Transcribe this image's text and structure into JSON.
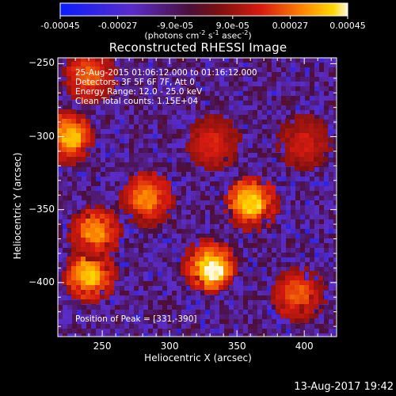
{
  "colorbar": {
    "tick_labels": [
      "-0.00045",
      "-0.00027",
      "-9.0e-05",
      "9.0e-05",
      "0.00027",
      "0.00045"
    ],
    "tick_values": [
      -0.00045,
      -0.00027,
      -9e-05,
      9e-05,
      0.00027,
      0.00045
    ],
    "range": [
      -0.00045,
      0.00045
    ],
    "unit_main": "(photons cm",
    "unit_exp1": "-2",
    "unit_mid1": " s",
    "unit_exp2": "-1",
    "unit_mid2": " asec",
    "unit_exp3": "-2",
    "unit_end": ")"
  },
  "chart_data": {
    "type": "heatmap",
    "title": "Reconstructed RHESSI Image",
    "xlabel": "Heliocentric X (arcsec)",
    "ylabel": "Heliocentric Y (arcsec)",
    "xlim": [
      217,
      424
    ],
    "ylim": [
      -437,
      -246
    ],
    "x_ticks": [
      250,
      300,
      350,
      400
    ],
    "y_ticks": [
      -250,
      -300,
      -350,
      -400
    ],
    "x_tick_labels": [
      "250",
      "300",
      "350",
      "400"
    ],
    "y_tick_labels": [
      "−250",
      "−300",
      "−350",
      "−400"
    ],
    "annotations": [
      "25-Aug-2015 01:06:12.000 to 01:16:12.000",
      "Detectors: 3F 5F 6F 7F, Att 0",
      "Energy Range: 12.0 - 25.0 keV",
      "Clean     Total counts: 1.15E+04"
    ],
    "peak_label": "Position of Peak = [331,-390]",
    "peak_position": [
      331,
      -390
    ],
    "sources": [
      {
        "x": 331,
        "y": -390,
        "value": 0.00045
      },
      {
        "x": 360,
        "y": -345,
        "value": 0.0004
      },
      {
        "x": 240,
        "y": -395,
        "value": 0.00038
      },
      {
        "x": 225,
        "y": -300,
        "value": 0.00036
      },
      {
        "x": 245,
        "y": -365,
        "value": 0.00032
      },
      {
        "x": 283,
        "y": -342,
        "value": 0.0003
      },
      {
        "x": 240,
        "y": -258,
        "value": 0.00026
      },
      {
        "x": 395,
        "y": -408,
        "value": 0.00025
      },
      {
        "x": 332,
        "y": -305,
        "value": 0.00018
      },
      {
        "x": 400,
        "y": -305,
        "value": 0.00016
      }
    ]
  },
  "footer": {
    "timestamp": "13-Aug-2017 19:42"
  }
}
